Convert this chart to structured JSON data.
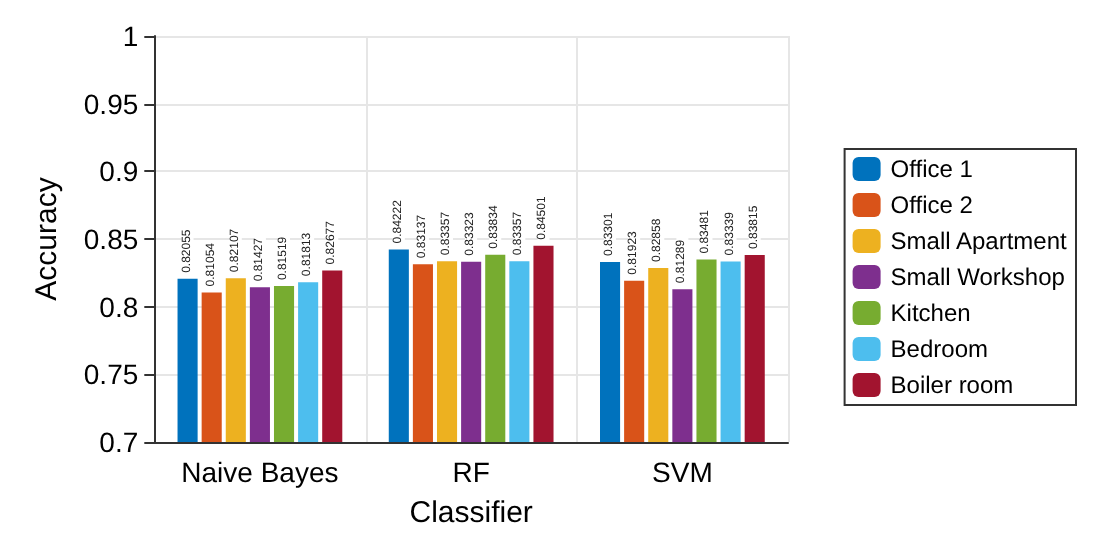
{
  "chart_data": {
    "type": "bar",
    "xlabel": "Classifier",
    "ylabel": "Accuracy",
    "categories": [
      "Naive Bayes",
      "RF",
      "SVM"
    ],
    "series": [
      {
        "name": "Office 1",
        "color": "#0072bd",
        "values": [
          0.82055,
          0.84222,
          0.83301
        ]
      },
      {
        "name": "Office 2",
        "color": "#d95319",
        "values": [
          0.81054,
          0.83137,
          0.81923
        ]
      },
      {
        "name": "Small Apartment",
        "color": "#edb120",
        "values": [
          0.82107,
          0.83357,
          0.82858
        ]
      },
      {
        "name": "Small Workshop",
        "color": "#7e2f8e",
        "values": [
          0.81427,
          0.83323,
          0.81289
        ]
      },
      {
        "name": "Kitchen",
        "color": "#77ac30",
        "values": [
          0.81519,
          0.83834,
          0.83481
        ]
      },
      {
        "name": "Bedroom",
        "color": "#4dbeee",
        "values": [
          0.81813,
          0.83357,
          0.83339
        ]
      },
      {
        "name": "Boiler room",
        "color": "#a2142f",
        "values": [
          0.82677,
          0.84501,
          0.83815
        ]
      }
    ],
    "ylim": [
      0.7,
      1
    ],
    "yticks": [
      0.7,
      0.75,
      0.8,
      0.85,
      0.9,
      0.95,
      1
    ],
    "grid": true,
    "legend": "right",
    "data_labels": true
  }
}
